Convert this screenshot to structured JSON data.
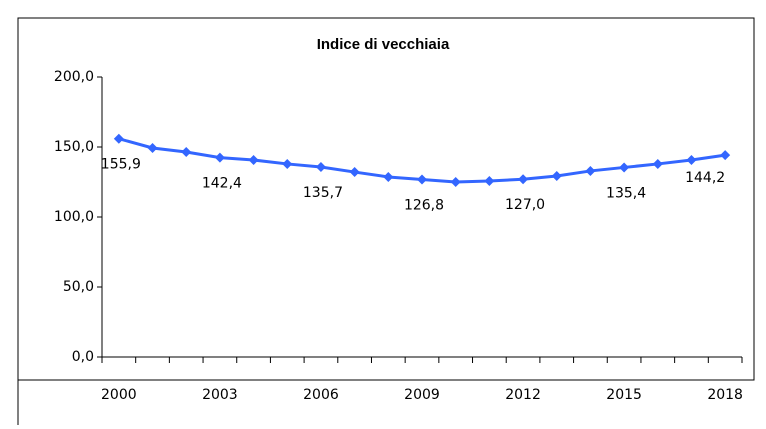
{
  "chart_data": {
    "type": "line",
    "title": "Indice di vecchiaia",
    "categories": [
      "2000",
      null,
      null,
      "2003",
      null,
      null,
      "2006",
      null,
      null,
      "2009",
      null,
      null,
      "2012",
      null,
      null,
      "2015",
      null,
      null,
      "2018"
    ],
    "values": [
      155.9,
      149.3,
      146.4,
      142.4,
      140.7,
      137.9,
      135.7,
      132.1,
      128.6,
      126.8,
      125.0,
      125.7,
      127.0,
      129.3,
      132.9,
      135.4,
      137.9,
      140.7,
      144.2
    ],
    "value_labels": [
      "155,9",
      null,
      null,
      "142,4",
      null,
      null,
      "135,7",
      null,
      null,
      "126,8",
      null,
      null,
      "127,0",
      null,
      null,
      "135,4",
      null,
      null,
      "144,2"
    ],
    "color": "#3366ff",
    "ylim": [
      0,
      200
    ],
    "yticks": [
      {
        "value": 0,
        "label": "0,0"
      },
      {
        "value": 50,
        "label": "50,0"
      },
      {
        "value": 100,
        "label": "100,0"
      },
      {
        "value": 150,
        "label": "150,0"
      },
      {
        "value": 200,
        "label": "200,0"
      }
    ],
    "grid": false
  }
}
